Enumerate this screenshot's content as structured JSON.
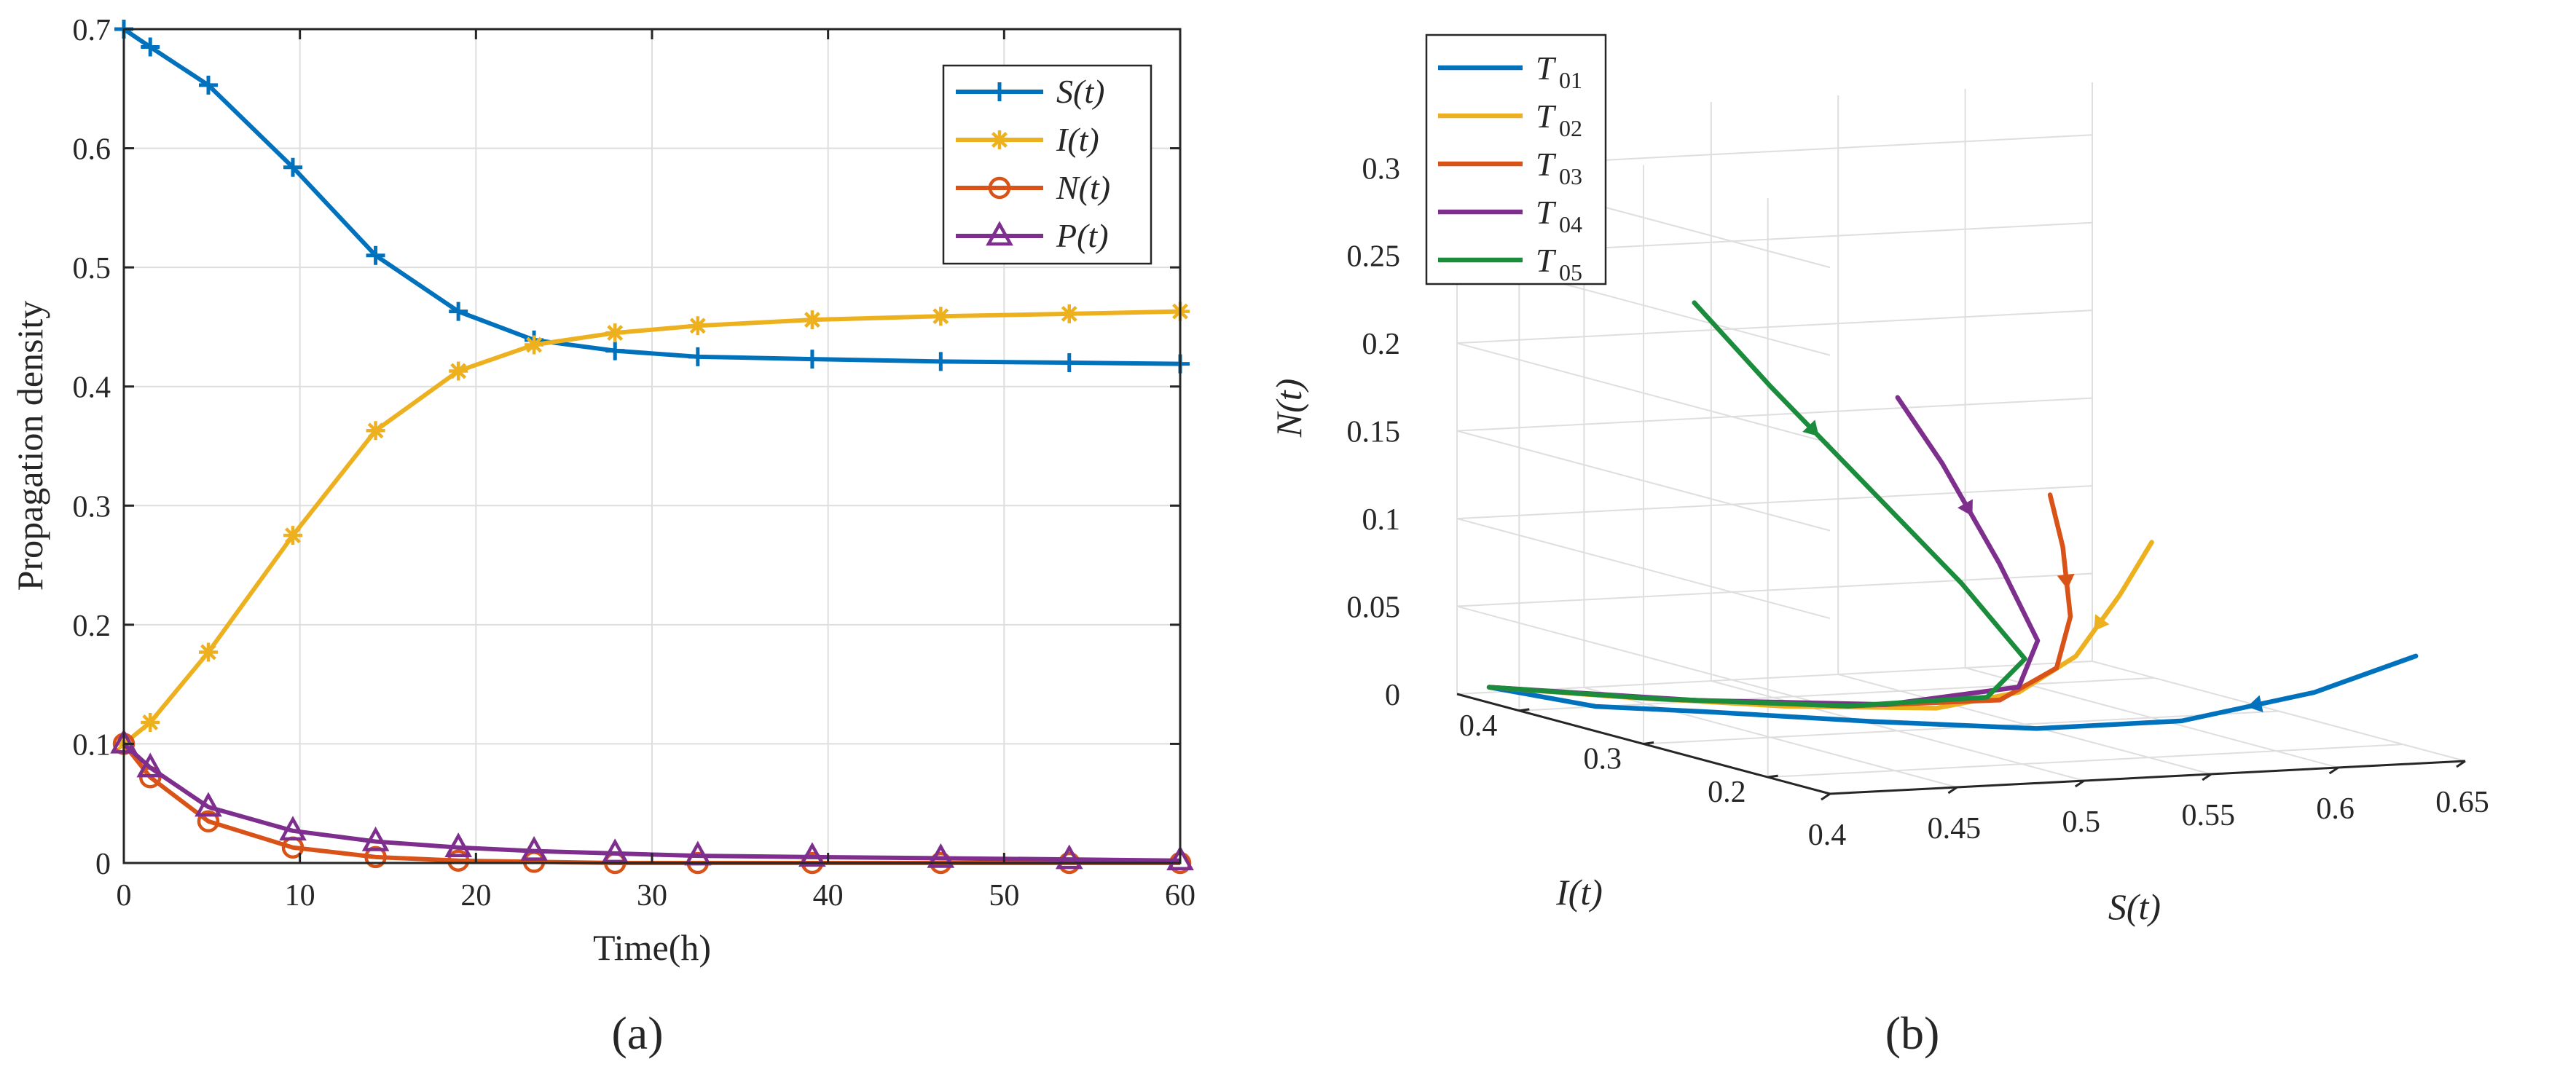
{
  "colors": {
    "blue": "#0072BD",
    "yellow": "#EDB120",
    "orange": "#D95319",
    "purple": "#7E2F8E",
    "green": "#1A8C3C",
    "grid": "#dedede",
    "axis": "#262626"
  },
  "chart_data": [
    {
      "type": "line",
      "panel": "a",
      "caption": "(a)",
      "title": "",
      "xlabel": "Time(h)",
      "ylabel": "Propagation density",
      "xlim": [
        0,
        60
      ],
      "ylim": [
        0,
        0.7
      ],
      "xticks": [
        "0",
        "10",
        "20",
        "30",
        "40",
        "50",
        "60"
      ],
      "yticks": [
        "0",
        "0.1",
        "0.2",
        "0.3",
        "0.4",
        "0.5",
        "0.6",
        "0.7"
      ],
      "grid": true,
      "legend_position": "top-right",
      "series": [
        {
          "name": "S(t)",
          "color_key": "blue",
          "marker": "plus",
          "x": [
            0,
            1.5,
            4.8,
            9.6,
            14.3,
            19.0,
            23.3,
            27.9,
            32.6,
            39.1,
            46.4,
            53.7,
            60
          ],
          "y": [
            0.7,
            0.685,
            0.653,
            0.584,
            0.51,
            0.463,
            0.439,
            0.43,
            0.425,
            0.423,
            0.421,
            0.42,
            0.419
          ]
        },
        {
          "name": "I(t)",
          "color_key": "yellow",
          "marker": "asterisk",
          "x": [
            0,
            1.5,
            4.8,
            9.6,
            14.3,
            19.0,
            23.3,
            27.9,
            32.6,
            39.1,
            46.4,
            53.7,
            60
          ],
          "y": [
            0.1,
            0.118,
            0.177,
            0.275,
            0.363,
            0.413,
            0.435,
            0.445,
            0.451,
            0.456,
            0.459,
            0.461,
            0.463
          ]
        },
        {
          "name": "N(t)",
          "color_key": "orange",
          "marker": "circle",
          "x": [
            0,
            1.5,
            4.8,
            9.6,
            14.3,
            19.0,
            23.3,
            27.9,
            32.6,
            39.1,
            46.4,
            53.7,
            60
          ],
          "y": [
            0.1,
            0.072,
            0.035,
            0.013,
            0.005,
            0.002,
            0.001,
            0.0,
            0.0,
            0.0,
            0.0,
            0.0,
            0.0
          ]
        },
        {
          "name": "P(t)",
          "color_key": "purple",
          "marker": "triangle",
          "x": [
            0,
            1.5,
            4.8,
            9.6,
            14.3,
            19.0,
            23.3,
            27.9,
            32.6,
            39.1,
            46.4,
            53.7,
            60
          ],
          "y": [
            0.1,
            0.08,
            0.047,
            0.027,
            0.018,
            0.013,
            0.01,
            0.008,
            0.006,
            0.005,
            0.004,
            0.003,
            0.002
          ]
        }
      ]
    },
    {
      "type": "line3d",
      "panel": "b",
      "caption": "(b)",
      "xlabel": "S(t)",
      "ylabel": "I(t)",
      "zlabel": "N(t)",
      "xlim": [
        0.4,
        0.65
      ],
      "ylim": [
        0.15,
        0.45
      ],
      "zlim": [
        0,
        0.33
      ],
      "xticks": [
        "0.4",
        "0.45",
        "0.5",
        "0.55",
        "0.6",
        "0.65"
      ],
      "yticks": [
        "0.2",
        "0.3",
        "0.4"
      ],
      "zticks": [
        "0",
        "0.05",
        "0.1",
        "0.15",
        "0.2",
        "0.25",
        "0.3"
      ],
      "grid": true,
      "legend_position": "top-left",
      "series": [
        {
          "name": "T_01",
          "label_main": "T",
          "label_sub": "01",
          "color_key": "blue",
          "points": [
            [
              0.655,
              0.2,
              0.05
            ],
            [
              0.62,
              0.21,
              0.03
            ],
            [
              0.58,
              0.235,
              0.012
            ],
            [
              0.54,
              0.27,
              0.004
            ],
            [
              0.5,
              0.32,
              0.0015
            ],
            [
              0.46,
              0.37,
              0.0005
            ],
            [
              0.43,
              0.4,
              0.0002
            ],
            [
              0.419,
              0.463,
              0.0
            ]
          ]
        },
        {
          "name": "T_02",
          "label_main": "T",
          "label_sub": "02",
          "color_key": "yellow",
          "points": [
            [
              0.6,
              0.3,
              0.1
            ],
            [
              0.59,
              0.305,
              0.07
            ],
            [
              0.575,
              0.31,
              0.035
            ],
            [
              0.555,
              0.315,
              0.015
            ],
            [
              0.53,
              0.33,
              0.005
            ],
            [
              0.49,
              0.37,
              0.0015
            ],
            [
              0.45,
              0.42,
              0.0003
            ],
            [
              0.419,
              0.463,
              0.0
            ]
          ]
        },
        {
          "name": "T_03",
          "label_main": "T",
          "label_sub": "03",
          "color_key": "orange",
          "points": [
            [
              0.56,
              0.3,
              0.13
            ],
            [
              0.565,
              0.3,
              0.1
            ],
            [
              0.568,
              0.3,
              0.06
            ],
            [
              0.565,
              0.305,
              0.03
            ],
            [
              0.55,
              0.32,
              0.01
            ],
            [
              0.51,
              0.36,
              0.002
            ],
            [
              0.46,
              0.41,
              0.0003
            ],
            [
              0.419,
              0.463,
              0.0
            ]
          ]
        },
        {
          "name": "T_04",
          "label_main": "T",
          "label_sub": "04",
          "color_key": "purple",
          "points": [
            [
              0.5,
              0.3,
              0.19
            ],
            [
              0.52,
              0.305,
              0.15
            ],
            [
              0.545,
              0.31,
              0.09
            ],
            [
              0.56,
              0.31,
              0.045
            ],
            [
              0.555,
              0.315,
              0.018
            ],
            [
              0.52,
              0.35,
              0.004
            ],
            [
              0.47,
              0.4,
              0.0006
            ],
            [
              0.419,
              0.463,
              0.0
            ]
          ]
        },
        {
          "name": "T_05",
          "label_main": "T",
          "label_sub": "05",
          "color_key": "green",
          "points": [
            [
              0.42,
              0.3,
              0.25
            ],
            [
              0.45,
              0.3,
              0.2
            ],
            [
              0.49,
              0.305,
              0.14
            ],
            [
              0.53,
              0.31,
              0.08
            ],
            [
              0.555,
              0.31,
              0.035
            ],
            [
              0.545,
              0.32,
              0.012
            ],
            [
              0.51,
              0.36,
              0.002
            ],
            [
              0.46,
              0.41,
              0.0003
            ],
            [
              0.419,
              0.463,
              0.0
            ]
          ]
        }
      ]
    }
  ]
}
